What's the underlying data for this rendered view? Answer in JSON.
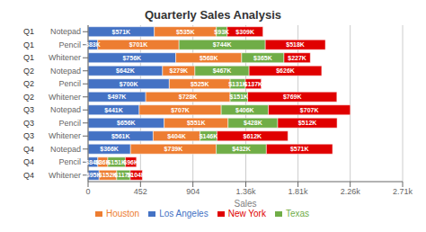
{
  "chart_data": {
    "type": "bar",
    "orientation": "horizontal",
    "stacked": true,
    "title": "Quarterly Sales Analysis",
    "xlabel": "Sales",
    "categories": [
      "Notepad",
      "Pencil",
      "Whitener",
      "Notepad",
      "Pencil",
      "Whitener",
      "Notepad",
      "Pencil",
      "Whitener",
      "Notepad",
      "Pencil",
      "Whitener"
    ],
    "annotations": [
      {
        "text": "Q1",
        "category": 0
      },
      {
        "text": "Q1",
        "category": 1
      },
      {
        "text": "Q1",
        "category": 2
      },
      {
        "text": "Q2",
        "category": 3
      },
      {
        "text": "Q2",
        "category": 4
      },
      {
        "text": "Q2",
        "category": 5
      },
      {
        "text": "Q3",
        "category": 6
      },
      {
        "text": "Q3",
        "category": 7
      },
      {
        "text": "Q3",
        "category": 8
      },
      {
        "text": "Q4",
        "category": 9
      },
      {
        "text": "Q4",
        "category": 10
      },
      {
        "text": "Q4",
        "category": 11
      }
    ],
    "series": [
      {
        "name": "Los Angeles",
        "color": "#4472C4",
        "values": [
          571,
          83,
          756,
          642,
          700,
          497,
          441,
          656,
          561,
          366,
          84,
          95
        ],
        "value_labels": [
          "$571K",
          "$83K",
          "$756K",
          "$642K",
          "$700K",
          "$497K",
          "$441K",
          "$656K",
          "$561K",
          "$366K",
          "$84K",
          "$95K"
        ]
      },
      {
        "name": "Houston",
        "color": "#ED7D31",
        "values": [
          535,
          701,
          568,
          279,
          525,
          728,
          707,
          551,
          404,
          739,
          86,
          152
        ],
        "value_labels": [
          "$535K",
          "$701K",
          "$568K",
          "$279K",
          "$525K",
          "$728K",
          "$707K",
          "$551K",
          "$404K",
          "$739K",
          "$86K",
          "$152K"
        ]
      },
      {
        "name": "Texas",
        "color": "#70AD47",
        "values": [
          93,
          744,
          365,
          467,
          131,
          151,
          406,
          428,
          146,
          432,
          151,
          117
        ],
        "value_labels": [
          "$93K",
          "$744K",
          "$365K",
          "$467K",
          "$131K",
          "$151K",
          "$406K",
          "$428K",
          "$146K",
          "$432K",
          "$151K",
          "$117K"
        ]
      },
      {
        "name": "New York",
        "color": "#E00000",
        "values": [
          309,
          518,
          227,
          626,
          137,
          769,
          707,
          512,
          612,
          571,
          96,
          104
        ],
        "value_labels": [
          "$309K",
          "$518K",
          "$227K",
          "$626K",
          "$137K",
          "$769K",
          "$707K",
          "$512K",
          "$612K",
          "$571K",
          "$96K",
          "$104K"
        ]
      }
    ],
    "xlim": [
      0,
      2712
    ],
    "xticks": [
      0,
      452,
      904,
      {
        "value": 1360,
        "label": "1.36k"
      },
      {
        "value": 1810,
        "label": "1.81k"
      },
      {
        "value": 2260,
        "label": "2.26k"
      },
      {
        "value": 2712,
        "label": "2.71k"
      }
    ],
    "grid": true,
    "legend": "bottom",
    "data_labels": true
  }
}
